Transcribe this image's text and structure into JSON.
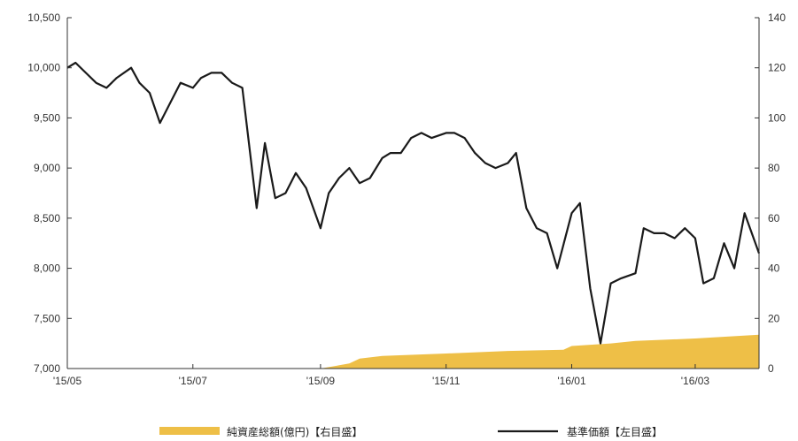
{
  "chart_data": {
    "type": "line",
    "x_tick_labels": [
      "'15/05",
      "'15/07",
      "'15/09",
      "'15/11",
      "'16/01",
      "'16/03"
    ],
    "x_tick_positions": [
      "2015-05",
      "2015-07",
      "2015-09",
      "2015-11",
      "2016-01",
      "2016-03"
    ],
    "y_left_ticks": [
      "7,000",
      "7,500",
      "8,000",
      "8,500",
      "9,000",
      "9,500",
      "10,000",
      "10,500"
    ],
    "y_left_range": [
      7000,
      10500
    ],
    "y_right_ticks": [
      "0",
      "20",
      "40",
      "60",
      "80",
      "100",
      "120",
      "140"
    ],
    "y_right_range": [
      0,
      140
    ],
    "x_range": [
      "2015-05",
      "2016-04"
    ],
    "grid": false,
    "legend_position": "bottom",
    "colors": {
      "area": "#eebf47",
      "line": "#1a1a1a",
      "axis": "#333333"
    },
    "series": [
      {
        "name": "純資産総額(億円)【右目盛】",
        "type": "area",
        "axis": "right",
        "x": [
          "2015-05",
          "2015-08",
          "2015-09",
          "2015-09-15",
          "2015-09-20",
          "2015-10",
          "2015-11",
          "2015-12",
          "2015-12-28",
          "2016-01",
          "2016-01-20",
          "2016-02",
          "2016-03",
          "2016-04"
        ],
        "values": [
          0,
          0,
          0,
          2,
          4,
          5,
          6,
          7,
          7.5,
          9,
          10,
          11,
          12,
          13.5
        ]
      },
      {
        "name": "基準価額【左目盛】",
        "type": "line",
        "axis": "left",
        "x": [
          "2015-05",
          "2015-05-05",
          "2015-05-10",
          "2015-05-15",
          "2015-05-20",
          "2015-05-25",
          "2015-06",
          "2015-06-05",
          "2015-06-10",
          "2015-06-15",
          "2015-06-20",
          "2015-06-25",
          "2015-07",
          "2015-07-05",
          "2015-07-10",
          "2015-07-15",
          "2015-07-20",
          "2015-07-25",
          "2015-08",
          "2015-08-05",
          "2015-08-10",
          "2015-08-15",
          "2015-08-20",
          "2015-08-25",
          "2015-09",
          "2015-09-05",
          "2015-09-10",
          "2015-09-15",
          "2015-09-20",
          "2015-09-25",
          "2015-10",
          "2015-10-05",
          "2015-10-10",
          "2015-10-15",
          "2015-10-20",
          "2015-10-25",
          "2015-11",
          "2015-11-05",
          "2015-11-10",
          "2015-11-15",
          "2015-11-20",
          "2015-11-25",
          "2015-12",
          "2015-12-05",
          "2015-12-10",
          "2015-12-15",
          "2015-12-20",
          "2015-12-25",
          "2016-01",
          "2016-01-05",
          "2016-01-10",
          "2016-01-15",
          "2016-01-20",
          "2016-01-25",
          "2016-02",
          "2016-02-05",
          "2016-02-10",
          "2016-02-15",
          "2016-02-20",
          "2016-02-25",
          "2016-03",
          "2016-03-05",
          "2016-03-10",
          "2016-03-15",
          "2016-03-20",
          "2016-03-25",
          "2016-04"
        ],
        "values": [
          10000,
          10050,
          9950,
          9850,
          9800,
          9900,
          10000,
          9850,
          9750,
          9450,
          9650,
          9850,
          9800,
          9900,
          9950,
          9950,
          9850,
          9800,
          8600,
          9250,
          8700,
          8750,
          8950,
          8800,
          8400,
          8750,
          8900,
          9000,
          8850,
          8900,
          9100,
          9150,
          9150,
          9300,
          9350,
          9300,
          9350,
          9350,
          9300,
          9150,
          9050,
          9000,
          9050,
          9150,
          8600,
          8400,
          8350,
          8000,
          8550,
          8650,
          7800,
          7250,
          7850,
          7900,
          7950,
          8400,
          8350,
          8350,
          8300,
          8400,
          8300,
          7850,
          7900,
          8250,
          8000,
          8550,
          8150
        ]
      }
    ]
  }
}
